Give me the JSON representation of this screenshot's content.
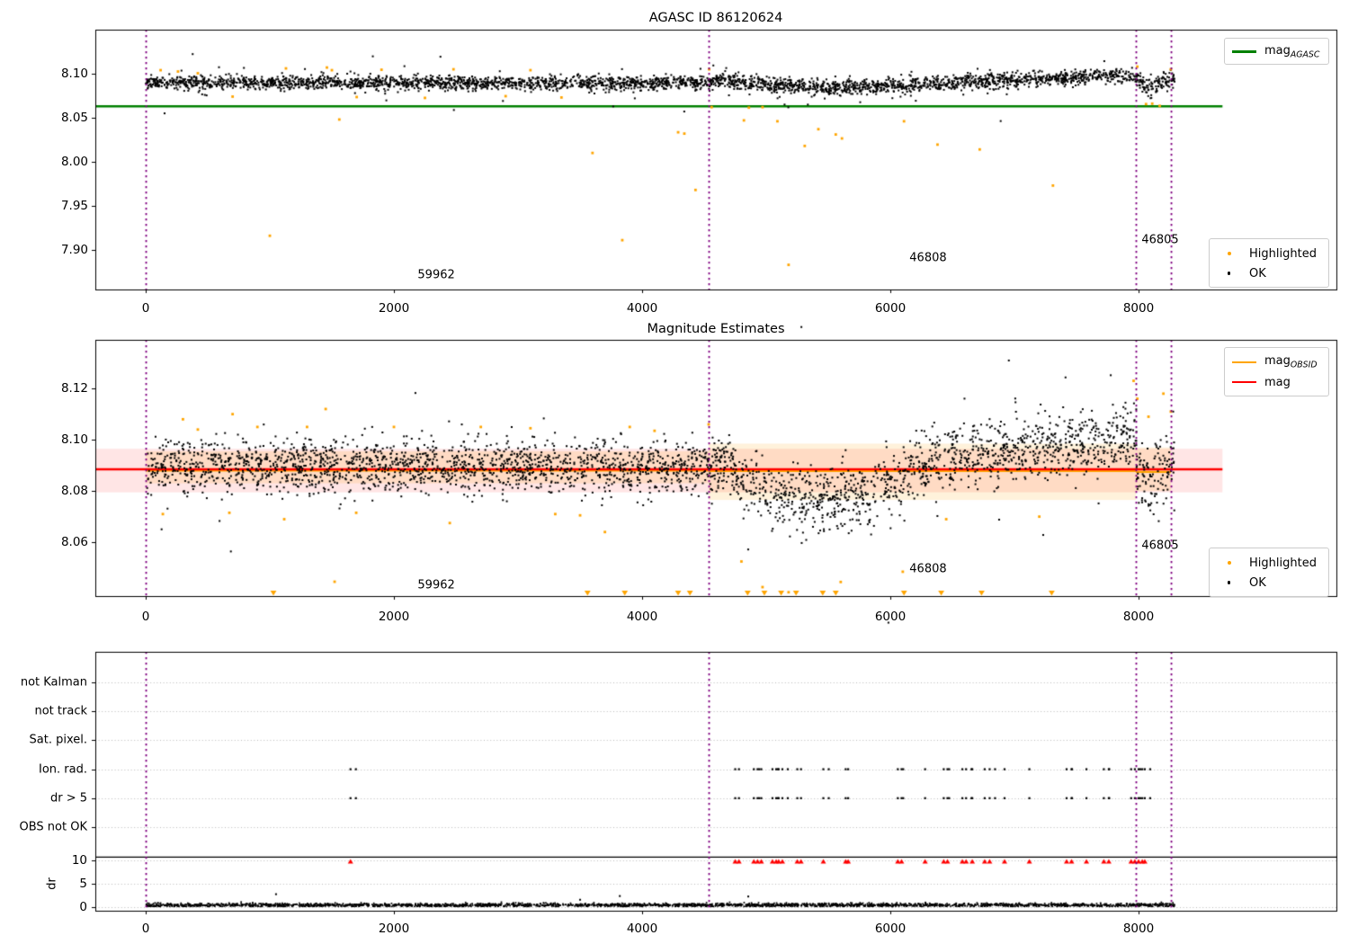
{
  "figure": {
    "title1": "AGASC ID 86120624",
    "title2": "Magnitude Estimates"
  },
  "colors": {
    "ok": "#000000",
    "highlighted": "#FFA500",
    "mag_agasc": "#008000",
    "mag": "#FF0000",
    "mag_obsid": "#FFA500",
    "vline": "#800080",
    "band_red": "rgba(255,0,0,0.10)",
    "band_orange": "rgba(255,165,0,0.14)",
    "grid": "#bbbbbb",
    "flag_marker": "#FF0000"
  },
  "legends": {
    "agasc": {
      "main": "mag",
      "sub": "AGASC"
    },
    "obsid": {
      "l1_main": "mag",
      "l1_sub": "OBSID",
      "l2": "mag"
    },
    "scatter": {
      "highlighted": "Highlighted",
      "ok": "OK"
    }
  },
  "chart_data": [
    {
      "type": "scatter",
      "title": "AGASC ID 86120624",
      "xlim": [
        -406,
        9594
      ],
      "ylim": [
        7.855,
        8.15
      ],
      "xticks": [
        0,
        2000,
        4000,
        6000,
        8000
      ],
      "xtick_labels": [
        "0",
        "2000",
        "4000",
        "6000",
        "8000"
      ],
      "yticks": [
        7.9,
        7.95,
        8.0,
        8.05,
        8.1
      ],
      "ytick_labels": [
        "7.90",
        "7.95",
        "8.00",
        "8.05",
        "8.10"
      ],
      "vlines": [
        0,
        4536,
        7978,
        8261
      ],
      "hline": {
        "y": 8.063,
        "x0": -406,
        "x1": 8676,
        "label": "mag_AGASC"
      },
      "ok_series": {
        "n": 3300,
        "xrange": [
          0,
          8290
        ],
        "seed": 42,
        "trend": [
          [
            0,
            8.09
          ],
          [
            600,
            8.0893
          ],
          [
            1200,
            8.0898
          ],
          [
            1800,
            8.0893
          ],
          [
            2400,
            8.0898
          ],
          [
            3000,
            8.0893
          ],
          [
            3600,
            8.0897
          ],
          [
            4200,
            8.0895
          ],
          [
            4536,
            8.0905
          ],
          [
            4650,
            8.094
          ],
          [
            4800,
            8.0905
          ],
          [
            5000,
            8.087
          ],
          [
            5300,
            8.0845
          ],
          [
            5600,
            8.084
          ],
          [
            5900,
            8.0855
          ],
          [
            6200,
            8.088
          ],
          [
            6600,
            8.0905
          ],
          [
            7000,
            8.093
          ],
          [
            7400,
            8.095
          ],
          [
            7800,
            8.0975
          ],
          [
            7960,
            8.0985
          ],
          [
            8000,
            8.094
          ],
          [
            8060,
            8.086
          ],
          [
            8120,
            8.085
          ],
          [
            8200,
            8.092
          ],
          [
            8290,
            8.095
          ]
        ],
        "sd": [
          [
            0,
            0.004
          ],
          [
            4536,
            0.004
          ],
          [
            4700,
            0.0045
          ],
          [
            6000,
            0.0045
          ],
          [
            7978,
            0.0042
          ],
          [
            8020,
            0.006
          ],
          [
            8120,
            0.006
          ],
          [
            8290,
            0.0045
          ]
        ],
        "outlier_frac": 0.025,
        "outlier_mult": 2.3
      },
      "highlighted_points": [
        [
          120,
          8.104
        ],
        [
          260,
          8.1025
        ],
        [
          420,
          8.1005
        ],
        [
          700,
          8.074
        ],
        [
          1000,
          7.916
        ],
        [
          1130,
          8.106
        ],
        [
          1460,
          8.107
        ],
        [
          1500,
          8.104
        ],
        [
          1560,
          8.048
        ],
        [
          1700,
          8.0735
        ],
        [
          1900,
          8.1045
        ],
        [
          2250,
          8.0725
        ],
        [
          2480,
          8.105
        ],
        [
          2900,
          8.0745
        ],
        [
          3100,
          8.104
        ],
        [
          3350,
          8.073
        ],
        [
          3600,
          8.01
        ],
        [
          3840,
          7.911
        ],
        [
          4290,
          8.0335
        ],
        [
          4340,
          8.032
        ],
        [
          4430,
          7.968
        ],
        [
          4540,
          8.105
        ],
        [
          4560,
          8.062
        ],
        [
          4820,
          8.047
        ],
        [
          4860,
          8.0615
        ],
        [
          4970,
          8.062
        ],
        [
          5090,
          8.046
        ],
        [
          5180,
          7.883
        ],
        [
          5310,
          8.018
        ],
        [
          5420,
          8.037
        ],
        [
          5560,
          8.031
        ],
        [
          5610,
          8.0265
        ],
        [
          6110,
          8.046
        ],
        [
          6380,
          8.0195
        ],
        [
          6720,
          8.014
        ],
        [
          7310,
          7.973
        ],
        [
          7990,
          8.108
        ],
        [
          8060,
          8.0655
        ],
        [
          8110,
          8.066
        ],
        [
          8170,
          8.0635
        ],
        [
          8260,
          8.105
        ]
      ],
      "annotations": [
        {
          "text": "59962",
          "x": 2341,
          "y": 7.871
        },
        {
          "text": "46808",
          "x": 6304,
          "y": 7.891
        },
        {
          "text": "46805",
          "x": 8174,
          "y": 7.911
        }
      ]
    },
    {
      "type": "scatter",
      "title": "Magnitude Estimates",
      "xlim": [
        -406,
        9594
      ],
      "ylim": [
        8.039,
        8.139
      ],
      "xticks": [
        0,
        2000,
        4000,
        6000,
        8000
      ],
      "xtick_labels": [
        "0",
        "2000",
        "4000",
        "6000",
        "8000"
      ],
      "yticks": [
        8.06,
        8.08,
        8.1,
        8.12
      ],
      "ytick_labels": [
        "8.06",
        "8.08",
        "8.10",
        "8.12"
      ],
      "vlines": [
        0,
        4536,
        7978,
        8261
      ],
      "mag_line": {
        "y": 8.0885,
        "x0": -406,
        "x1": 8676,
        "band": [
          8.0795,
          8.0965
        ],
        "label": "mag"
      },
      "obsid_segments": [
        {
          "obsid": "59962",
          "x0": 0,
          "x1": 4536,
          "y": 8.088,
          "band": [
            8.083,
            8.0955
          ]
        },
        {
          "obsid": "46808",
          "x0": 4536,
          "x1": 7978,
          "y": 8.0878,
          "band": [
            8.0765,
            8.0985
          ]
        },
        {
          "obsid": "46805",
          "x0": 7978,
          "x1": 8261,
          "y": 8.0875,
          "band": [
            8.08,
            8.097
          ]
        }
      ],
      "ok_series": {
        "n": 3300,
        "xrange": [
          0,
          8290
        ],
        "seed": 17,
        "trend": [
          [
            0,
            8.0895
          ],
          [
            4536,
            8.0895
          ],
          [
            4650,
            8.093
          ],
          [
            4800,
            8.086
          ],
          [
            5000,
            8.08
          ],
          [
            5200,
            8.077
          ],
          [
            5500,
            8.076
          ],
          [
            5800,
            8.079
          ],
          [
            6100,
            8.085
          ],
          [
            6400,
            8.092
          ],
          [
            6700,
            8.095
          ],
          [
            7000,
            8.0965
          ],
          [
            7300,
            8.0975
          ],
          [
            7600,
            8.0985
          ],
          [
            7950,
            8.1
          ],
          [
            7990,
            8.092
          ],
          [
            8050,
            8.084
          ],
          [
            8120,
            8.083
          ],
          [
            8200,
            8.09
          ],
          [
            8290,
            8.096
          ]
        ],
        "sd": [
          [
            0,
            0.0052
          ],
          [
            4536,
            0.0052
          ],
          [
            4700,
            0.0058
          ],
          [
            6100,
            0.0062
          ],
          [
            7978,
            0.0062
          ],
          [
            8020,
            0.008
          ],
          [
            8290,
            0.0075
          ]
        ],
        "outlier_frac": 0.02,
        "outlier_mult": 2.0
      },
      "highlighted_points": [
        [
          138,
          8.071
        ],
        [
          300,
          8.108
        ],
        [
          420,
          8.104
        ],
        [
          674,
          8.0715
        ],
        [
          700,
          8.11
        ],
        [
          900,
          8.105
        ],
        [
          1116,
          8.069
        ],
        [
          1300,
          8.105
        ],
        [
          1450,
          8.112
        ],
        [
          1522,
          8.0446
        ],
        [
          1696,
          8.0715
        ],
        [
          2000,
          8.105
        ],
        [
          2450,
          8.0675
        ],
        [
          2700,
          8.105
        ],
        [
          3100,
          8.1045
        ],
        [
          3300,
          8.071
        ],
        [
          3500,
          8.0705
        ],
        [
          3700,
          8.064
        ],
        [
          3900,
          8.105
        ],
        [
          4100,
          8.1035
        ],
        [
          4536,
          8.106
        ],
        [
          4800,
          8.0525
        ],
        [
          4970,
          8.0425
        ],
        [
          5180,
          8.0405
        ],
        [
          5600,
          8.0445
        ],
        [
          6100,
          8.0485
        ],
        [
          6450,
          8.069
        ],
        [
          7200,
          8.07
        ],
        [
          7960,
          8.123
        ],
        [
          7990,
          8.116
        ],
        [
          8080,
          8.109
        ],
        [
          8200,
          8.118
        ],
        [
          8260,
          8.111
        ]
      ],
      "clipped_markers": {
        "shape": "triangle-down",
        "y": "bottom",
        "xs": [
          1029,
          3560,
          3860,
          4290,
          4385,
          4850,
          4985,
          5120,
          5240,
          5455,
          5560,
          6110,
          6410,
          6735,
          7300
        ]
      },
      "annotations": [
        {
          "text": "59962",
          "x": 2341,
          "y": 8.0432
        },
        {
          "text": "46808",
          "x": 6304,
          "y": 8.0495
        },
        {
          "text": "46805",
          "x": 8174,
          "y": 8.0587
        }
      ]
    },
    {
      "type": "scatter",
      "title": "",
      "xlim": [
        -406,
        9594
      ],
      "xticks": [
        0,
        2000,
        4000,
        6000,
        8000
      ],
      "xtick_labels": [
        "0",
        "2000",
        "4000",
        "6000",
        "8000"
      ],
      "categories": [
        "not Kalman",
        "not track",
        "Sat. pixel.",
        "Ion. rad.",
        "dr > 5",
        "OBS not OK"
      ],
      "dr_ticks": [
        0,
        5,
        10
      ],
      "dr_tick_labels": [
        "0",
        "5",
        "10"
      ],
      "dr_label": "dr",
      "vlines": [
        0,
        4536,
        7978,
        8261
      ],
      "flag_rows": [
        "Ion. rad.",
        "dr > 5"
      ],
      "flag_xs": [
        1650,
        4750,
        4780,
        4900,
        4930,
        4960,
        5050,
        5080,
        5100,
        5130,
        5250,
        5280,
        5460,
        5640,
        5660,
        6060,
        6090,
        6280,
        6430,
        6460,
        6580,
        6610,
        6660,
        6760,
        6800,
        6920,
        7120,
        7420,
        7460,
        7580,
        7720,
        7760,
        7940,
        7970,
        8000,
        8030,
        8050
      ],
      "red_markers": {
        "shape": "triangle-up",
        "dr": 10,
        "xs": [
          1650,
          4750,
          4780,
          4900,
          4930,
          4960,
          5050,
          5080,
          5100,
          5130,
          5250,
          5280,
          5460,
          5640,
          5660,
          6060,
          6090,
          6280,
          6430,
          6460,
          6580,
          6610,
          6660,
          6760,
          6800,
          6920,
          7120,
          7420,
          7460,
          7580,
          7720,
          7760,
          7940,
          7970,
          8000,
          8030,
          8050
        ]
      },
      "dr_series": {
        "n": 2700,
        "xrange": [
          0,
          8290
        ],
        "mean": 0.35,
        "sd": 0.2,
        "seed": 7
      },
      "dr_outliers": [
        [
          1050,
          2.7
        ],
        [
          3500,
          1.5
        ],
        [
          3820,
          2.3
        ],
        [
          4855,
          2.2
        ]
      ],
      "separator_dr": 10.7
    }
  ]
}
